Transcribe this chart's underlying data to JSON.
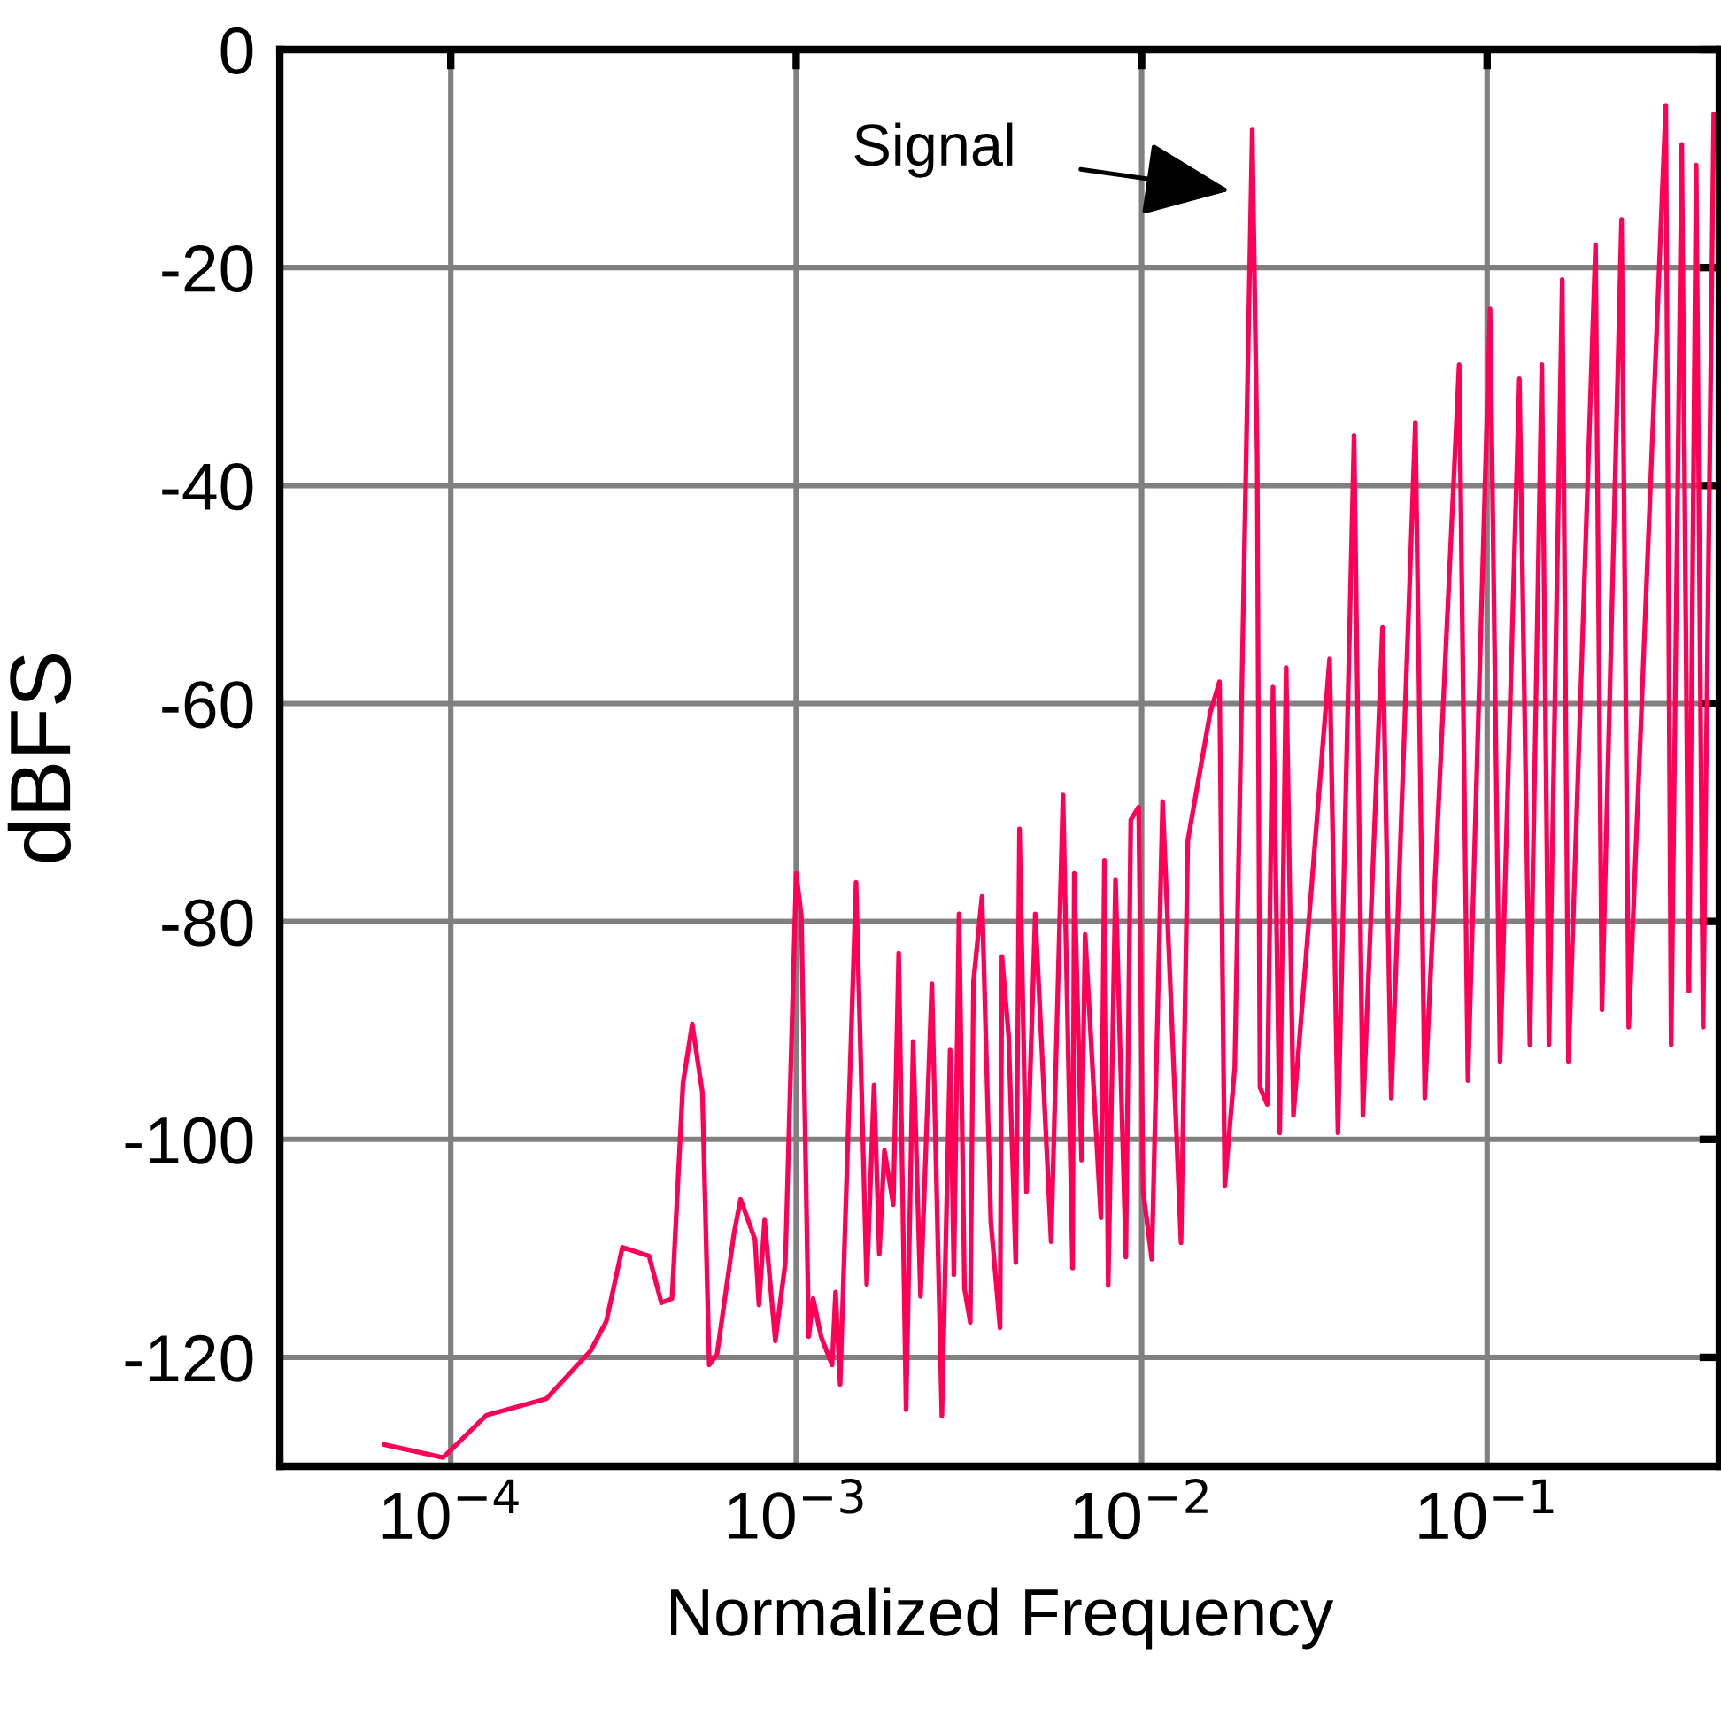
{
  "chart_data": {
    "type": "line",
    "xlabel": "Normalized Frequency",
    "ylabel": "dBFS",
    "log": "x",
    "grid": true,
    "marker": "none",
    "line_style": "solid",
    "xlim": [
      3.2e-05,
      0.47
    ],
    "ylim": [
      -130,
      0
    ],
    "xticks": [
      {
        "value": 0.0001,
        "label": "10$^{−4}$"
      },
      {
        "value": 0.001,
        "label": "10$^{−3}$"
      },
      {
        "value": 0.01,
        "label": "10$^{−2}$"
      },
      {
        "value": 0.1,
        "label": "10$^{−1}$"
      }
    ],
    "yticks": [
      -120,
      -100,
      -80,
      -60,
      -40,
      -20,
      0
    ],
    "annotations": [
      "Signal"
    ],
    "series": [
      {
        "color": "#ff0055",
        "x": [
          6.4e-05,
          9.5e-05,
          0.000127,
          0.000189,
          0.000254,
          0.000282,
          0.000314,
          0.000375,
          0.000407,
          0.000437,
          0.00047,
          0.0005,
          0.000535,
          0.00056,
          0.00059,
          0.00066,
          0.00069,
          0.00076,
          0.00078,
          0.00081,
          0.00087,
          0.00093,
          0.001,
          0.001035,
          0.001087,
          0.00112,
          0.00118,
          0.00127,
          0.0013,
          0.00134,
          0.00149,
          0.0016,
          0.00168,
          0.00174,
          0.0018,
          0.00191,
          0.00198,
          0.00208,
          0.00218,
          0.00229,
          0.00247,
          0.00264,
          0.00279,
          0.00286,
          0.00296,
          0.00307,
          0.00319,
          0.00326,
          0.00345,
          0.00366,
          0.00389,
          0.00394,
          0.00412,
          0.00432,
          0.00443,
          0.00464,
          0.00492,
          0.00547,
          0.00592,
          0.00631,
          0.00638,
          0.0067,
          0.00686,
          0.00762,
          0.0078,
          0.008,
          0.0084,
          0.009,
          0.0093,
          0.0098,
          0.0101,
          0.0107,
          0.0115,
          0.013,
          0.0136,
          0.0158,
          0.0168,
          0.0174,
          0.0186,
          0.0209,
          0.0216,
          0.022,
          0.0231,
          0.024,
          0.0251,
          0.0262,
          0.0275,
          0.035,
          0.037,
          0.0412,
          0.0437,
          0.0498,
          0.0528,
          0.062,
          0.066,
          0.083,
          0.088,
          0.102,
          0.109,
          0.124,
          0.133,
          0.144,
          0.151,
          0.165,
          0.172,
          0.206,
          0.215,
          0.245,
          0.257,
          0.329,
          0.341,
          0.366,
          0.384,
          0.403,
          0.422,
          0.453
        ],
        "values": [
          -128,
          -129.2,
          -125.3,
          -123.8,
          -119.4,
          -116.7,
          -109.9,
          -110.7,
          -115,
          -114.6,
          -94.9,
          -89.4,
          -95.7,
          -120.7,
          -119.7,
          -108.7,
          -105.5,
          -109.2,
          -115.2,
          -107.4,
          -118.5,
          -111.3,
          -75.6,
          -79.5,
          -118.1,
          -114.6,
          -118.1,
          -120.7,
          -114,
          -122.5,
          -76.4,
          -113.3,
          -95,
          -110.5,
          -101,
          -106,
          -82.9,
          -124.8,
          -91,
          -114.4,
          -85.7,
          -125.4,
          -91.8,
          -112.4,
          -79.3,
          -113.7,
          -116.8,
          -85.5,
          -77.7,
          -107.6,
          -117.3,
          -83.2,
          -90.5,
          -111.3,
          -71.5,
          -104.8,
          -79.3,
          -109.4,
          -68.4,
          -111.8,
          -75.6,
          -101.9,
          -81.2,
          -107.2,
          -74.4,
          -113.4,
          -76.2,
          -110.8,
          -70.7,
          -69.5,
          -104.8,
          -111,
          -69,
          -109.5,
          -72.6,
          -60.8,
          -58,
          -104.3,
          -93.4,
          -7.3,
          -37.4,
          -95.2,
          -96.8,
          -58.5,
          -99.4,
          -56.7,
          -97.8,
          -55.9,
          -99.4,
          -35.4,
          -97.8,
          -53,
          -96.2,
          -34.2,
          -96.2,
          -28.9,
          -94.6,
          -23.8,
          -92.9,
          -30.2,
          -91.3,
          -28.9,
          -91.3,
          -21.1,
          -92.9,
          -17.9,
          -88.1,
          -15.6,
          -89.7,
          -5.1,
          -91.3,
          -8.7,
          -86.4,
          -10.6,
          -89.7,
          -5.9
        ]
      }
    ]
  }
}
